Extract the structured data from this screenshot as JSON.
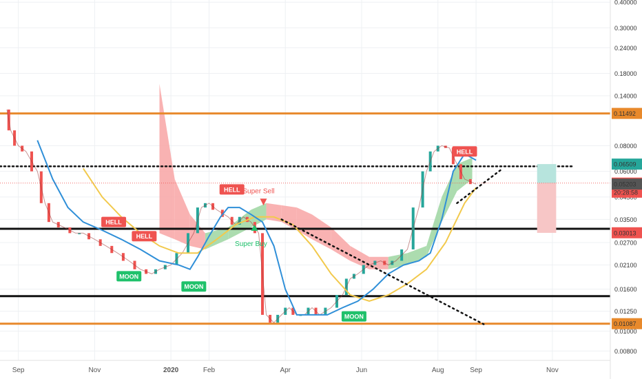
{
  "chart_data": {
    "type": "line",
    "scale": "log",
    "grid": true,
    "x_ticks": [
      {
        "label": "Sep",
        "month": 0.3
      },
      {
        "label": "Nov",
        "month": 2.3
      },
      {
        "label": "2020",
        "month": 4.3
      },
      {
        "label": "Feb",
        "month": 5.3
      },
      {
        "label": "Apr",
        "month": 7.3
      },
      {
        "label": "Jun",
        "month": 9.3
      },
      {
        "label": "Aug",
        "month": 11.3
      },
      {
        "label": "Sep",
        "month": 12.3
      },
      {
        "label": "Nov",
        "month": 14.3
      }
    ],
    "y_ticks": [
      "0.00800",
      "0.01000",
      "0.01250",
      "0.01600",
      "0.02100",
      "0.02700",
      "0.03500",
      "0.04500",
      "0.06000",
      "0.08000",
      "0.11492",
      "0.14000",
      "0.18000",
      "0.24000",
      "0.30000",
      "0.40000"
    ],
    "y_tick_values": [
      0.008,
      0.01,
      0.0125,
      0.016,
      0.021,
      0.027,
      0.035,
      0.045,
      0.06,
      0.08,
      0.11492,
      0.14,
      0.18,
      0.24,
      0.3,
      0.4
    ],
    "ylim": [
      0.0072,
      0.41
    ],
    "xlim": [
      0,
      16
    ],
    "price_labels": [
      {
        "text": "0.11492",
        "value": 0.11492,
        "color": "#e8892b"
      },
      {
        "text": "0.06509",
        "value": 0.06509,
        "color": "#26a69a"
      },
      {
        "text": "0.05260",
        "value": 0.0526,
        "color": "#ef5350"
      },
      {
        "text": "20:28:58",
        "value": 0.0475,
        "color": "#ef5350"
      },
      {
        "text": "0.05203",
        "value": 0.05203,
        "color": "#555555"
      },
      {
        "text": "0.03013",
        "value": 0.03013,
        "color": "#ef5350"
      },
      {
        "text": "0.01087",
        "value": 0.01087,
        "color": "#e8892b"
      }
    ],
    "horizontal_lines": [
      {
        "value": 0.11492,
        "color": "#e8892b",
        "width": 3
      },
      {
        "value": 0.0315,
        "color": "#111111",
        "width": 3
      },
      {
        "value": 0.0148,
        "color": "#111111",
        "width": 3
      },
      {
        "value": 0.01087,
        "color": "#e8892b",
        "width": 3
      },
      {
        "value": 0.0635,
        "color": "#111111",
        "width": 2.5,
        "dotted": true
      }
    ],
    "price_series": {
      "name": "",
      "x": [
        0.0,
        0.1,
        0.3,
        0.5,
        0.8,
        1.0,
        1.2,
        1.5,
        1.8,
        2.0,
        2.3,
        2.6,
        2.9,
        3.2,
        3.5,
        3.8,
        4.0,
        4.3,
        4.6,
        4.9,
        5.1,
        5.3,
        5.5,
        5.8,
        6.0,
        6.2,
        6.4,
        6.6,
        6.8,
        7.0,
        7.2,
        7.4,
        7.6,
        7.8,
        8.0,
        8.2,
        8.5,
        8.8,
        9.0,
        9.2,
        9.5,
        9.8,
        10.0,
        10.2,
        10.5,
        10.8,
        11.0,
        11.2,
        11.4,
        11.6,
        11.8,
        12.0,
        12.3
      ],
      "values": [
        0.12,
        0.095,
        0.08,
        0.075,
        0.06,
        0.042,
        0.034,
        0.032,
        0.03,
        0.03,
        0.028,
        0.026,
        0.024,
        0.022,
        0.02,
        0.019,
        0.02,
        0.021,
        0.024,
        0.03,
        0.04,
        0.042,
        0.039,
        0.036,
        0.033,
        0.036,
        0.034,
        0.03,
        0.012,
        0.011,
        0.012,
        0.013,
        0.012,
        0.012,
        0.013,
        0.012,
        0.013,
        0.015,
        0.018,
        0.019,
        0.021,
        0.022,
        0.021,
        0.022,
        0.025,
        0.04,
        0.06,
        0.075,
        0.08,
        0.078,
        0.065,
        0.055,
        0.052
      ]
    },
    "ma_blue": {
      "name": "",
      "x": [
        0.8,
        1.2,
        1.6,
        2.0,
        2.5,
        3.0,
        3.5,
        4.0,
        4.5,
        4.8,
        5.0,
        5.3,
        5.6,
        5.8,
        6.1,
        6.4,
        6.7,
        7.0,
        7.3,
        7.6,
        8.0,
        8.4,
        8.8,
        9.2,
        9.6,
        10.0,
        10.4,
        10.8,
        11.1,
        11.4,
        11.7,
        12.0,
        12.3
      ],
      "values": [
        0.085,
        0.055,
        0.04,
        0.034,
        0.031,
        0.028,
        0.025,
        0.022,
        0.021,
        0.02,
        0.023,
        0.029,
        0.036,
        0.04,
        0.04,
        0.037,
        0.034,
        0.026,
        0.016,
        0.012,
        0.012,
        0.012,
        0.013,
        0.014,
        0.016,
        0.019,
        0.021,
        0.022,
        0.024,
        0.035,
        0.06,
        0.073,
        0.068
      ]
    },
    "ma_yellow": {
      "name": "",
      "x": [
        2.0,
        2.5,
        3.0,
        3.5,
        4.0,
        4.5,
        5.0,
        5.5,
        6.0,
        6.5,
        7.0,
        7.5,
        8.0,
        8.5,
        9.0,
        9.5,
        10.0,
        10.5,
        11.0,
        11.5,
        12.0,
        12.3
      ],
      "values": [
        0.062,
        0.045,
        0.036,
        0.03,
        0.026,
        0.024,
        0.024,
        0.028,
        0.033,
        0.036,
        0.036,
        0.033,
        0.026,
        0.019,
        0.015,
        0.014,
        0.015,
        0.017,
        0.02,
        0.027,
        0.042,
        0.05
      ]
    },
    "cloud": {
      "x": [
        4.0,
        4.4,
        4.8,
        5.2,
        5.8,
        6.4,
        6.8,
        7.2,
        7.6,
        8.0,
        8.5,
        9.0,
        9.5,
        10.0,
        10.5,
        11.0,
        11.4,
        11.8,
        12.2
      ],
      "upper": [
        0.16,
        0.055,
        0.037,
        0.03,
        0.032,
        0.039,
        0.042,
        0.041,
        0.04,
        0.037,
        0.032,
        0.026,
        0.023,
        0.023,
        0.024,
        0.026,
        0.045,
        0.065,
        0.07
      ],
      "lower": [
        0.03,
        0.028,
        0.026,
        0.025,
        0.028,
        0.032,
        0.035,
        0.034,
        0.031,
        0.028,
        0.025,
        0.022,
        0.02,
        0.02,
        0.021,
        0.023,
        0.034,
        0.048,
        0.055
      ],
      "bearish_color": "#f8a5a5",
      "bullish_color": "#9ed6a1"
    },
    "trendlines": [
      {
        "x": [
          7.2,
          12.5
        ],
        "values": [
          0.035,
          0.0108
        ],
        "dotted": true
      },
      {
        "x": [
          11.8,
          13.0
        ],
        "values": [
          0.042,
          0.062
        ],
        "dotted": true
      }
    ],
    "annotations": [
      {
        "text": "HELL",
        "kind": "hell",
        "x": 2.8,
        "value": 0.034
      },
      {
        "text": "HELL",
        "kind": "hell",
        "x": 3.6,
        "value": 0.029
      },
      {
        "text": "HELL",
        "kind": "hell",
        "x": 5.9,
        "value": 0.049
      },
      {
        "text": "HELL",
        "kind": "hell",
        "x": 12.0,
        "value": 0.075
      },
      {
        "text": "MOON",
        "kind": "moon",
        "x": 3.2,
        "value": 0.0185
      },
      {
        "text": "MOON",
        "kind": "moon",
        "x": 4.9,
        "value": 0.0165
      },
      {
        "text": "MOON",
        "kind": "moon",
        "x": 9.1,
        "value": 0.0118
      },
      {
        "text": "Super Sell",
        "kind": "super-sell",
        "x": 6.6,
        "value": 0.047
      },
      {
        "text": "Super Buy",
        "kind": "super-buy",
        "x": 6.4,
        "value": 0.026
      }
    ],
    "position_box": {
      "x_start": 13.9,
      "x_end": 14.4,
      "entry": 0.0526,
      "target": 0.0651,
      "stop": 0.0301,
      "profit_color": "#b7e4dd",
      "loss_color": "#f7c6c6"
    },
    "colors": {
      "up": "#26a69a",
      "down": "#ef5350",
      "ma_blue": "#2f8fd8",
      "ma_yellow": "#f2c94c",
      "hell": "#ef5350",
      "moon": "#1fc16b"
    }
  }
}
